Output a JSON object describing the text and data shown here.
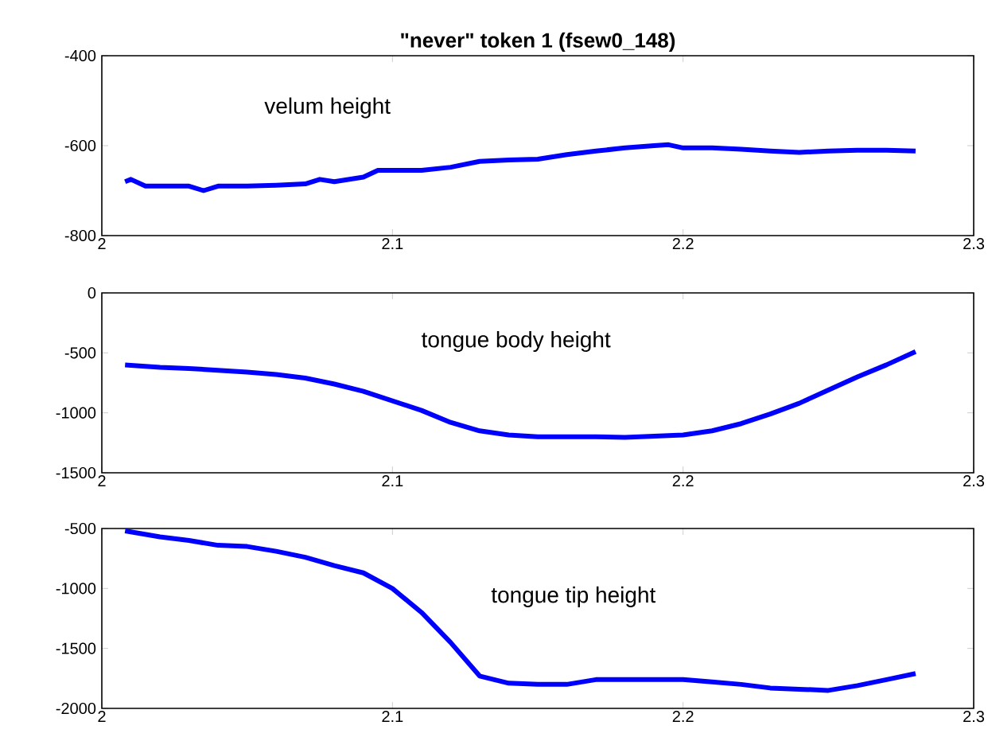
{
  "chart_data": [
    {
      "type": "line",
      "title": "\"never\"   token 1   (fsew0_148)",
      "annotations": [
        "velum height"
      ],
      "xlim": [
        2,
        2.3
      ],
      "xticks": [
        2,
        2.1,
        2.2,
        2.3
      ],
      "ylim": [
        -800,
        -400
      ],
      "yticks": [
        -800,
        -600,
        -400
      ],
      "x": [
        2.008,
        2.01,
        2.015,
        2.02,
        2.03,
        2.035,
        2.04,
        2.05,
        2.06,
        2.07,
        2.075,
        2.08,
        2.09,
        2.095,
        2.1,
        2.11,
        2.12,
        2.13,
        2.14,
        2.15,
        2.16,
        2.17,
        2.18,
        2.19,
        2.195,
        2.2,
        2.21,
        2.22,
        2.23,
        2.24,
        2.25,
        2.26,
        2.27,
        2.28
      ],
      "series": [
        {
          "color": "#0000ff",
          "values": [
            -680,
            -675,
            -690,
            -690,
            -690,
            -700,
            -690,
            -690,
            -688,
            -685,
            -675,
            -680,
            -670,
            -655,
            -655,
            -655,
            -648,
            -635,
            -632,
            -630,
            -620,
            -612,
            -605,
            -600,
            -598,
            -605,
            -605,
            -608,
            -612,
            -615,
            -612,
            -610,
            -610,
            -612
          ]
        }
      ]
    },
    {
      "type": "line",
      "annotations": [
        "tongue body height"
      ],
      "xlim": [
        2,
        2.3
      ],
      "xticks": [
        2,
        2.1,
        2.2,
        2.3
      ],
      "ylim": [
        -1500,
        0
      ],
      "yticks": [
        -1500,
        -1000,
        -500,
        0
      ],
      "x": [
        2.008,
        2.02,
        2.03,
        2.04,
        2.05,
        2.06,
        2.07,
        2.08,
        2.09,
        2.1,
        2.11,
        2.12,
        2.13,
        2.14,
        2.15,
        2.16,
        2.17,
        2.18,
        2.19,
        2.2,
        2.21,
        2.22,
        2.23,
        2.24,
        2.25,
        2.26,
        2.27,
        2.28
      ],
      "series": [
        {
          "color": "#0000ff",
          "values": [
            -600,
            -620,
            -630,
            -645,
            -660,
            -680,
            -710,
            -760,
            -820,
            -900,
            -980,
            -1080,
            -1150,
            -1185,
            -1200,
            -1200,
            -1200,
            -1205,
            -1195,
            -1185,
            -1150,
            -1090,
            -1010,
            -920,
            -810,
            -700,
            -600,
            -490
          ]
        }
      ]
    },
    {
      "type": "line",
      "annotations": [
        "tongue tip height"
      ],
      "xlim": [
        2,
        2.3
      ],
      "xticks": [
        2,
        2.1,
        2.2,
        2.3
      ],
      "ylim": [
        -2000,
        -500
      ],
      "yticks": [
        -2000,
        -1500,
        -1000,
        -500
      ],
      "x": [
        2.008,
        2.02,
        2.03,
        2.04,
        2.05,
        2.06,
        2.07,
        2.08,
        2.09,
        2.1,
        2.11,
        2.12,
        2.13,
        2.14,
        2.15,
        2.16,
        2.17,
        2.18,
        2.19,
        2.2,
        2.21,
        2.22,
        2.23,
        2.24,
        2.25,
        2.26,
        2.27,
        2.28
      ],
      "series": [
        {
          "color": "#0000ff",
          "values": [
            -520,
            -570,
            -600,
            -640,
            -650,
            -690,
            -740,
            -810,
            -870,
            -1000,
            -1200,
            -1450,
            -1730,
            -1790,
            -1800,
            -1800,
            -1760,
            -1760,
            -1760,
            -1760,
            -1780,
            -1800,
            -1830,
            -1840,
            -1850,
            -1810,
            -1760,
            -1710
          ]
        }
      ]
    }
  ]
}
